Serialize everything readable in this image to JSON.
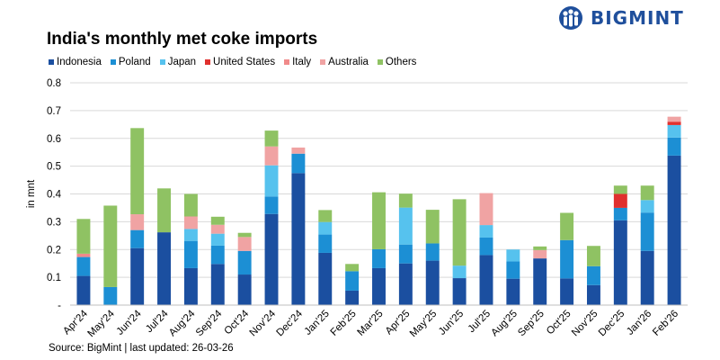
{
  "brand": {
    "name": "BIGMINT",
    "icon": "bigmint-people-logo-icon",
    "color": "#1f4f9c"
  },
  "chart_data": {
    "type": "bar",
    "stacked": true,
    "title": "India's monthly met coke imports",
    "ylabel": "in mnt",
    "xlabel": "",
    "ylim": [
      0,
      0.8
    ],
    "yticks": [
      "-",
      "0.1",
      "0.2",
      "0.3",
      "0.4",
      "0.5",
      "0.6",
      "0.7",
      "0.8"
    ],
    "grid": true,
    "legend_position": "top-left",
    "categories": [
      "Apr'24",
      "May'24",
      "Jun'24",
      "Jul'24",
      "Aug'24",
      "Sep'24",
      "Oct'24",
      "Nov'24",
      "Dec'24",
      "Jan'25",
      "Feb'25",
      "Mar'25",
      "Apr'25",
      "May'25",
      "Jun'25",
      "Jul'25",
      "Aug'25",
      "Sep'25",
      "Oct'25",
      "Nov'25",
      "Dec'25",
      "Jan'26",
      "Feb'26"
    ],
    "series": [
      {
        "name": "Indonesia",
        "color": "#1b4fa0",
        "values": [
          0.105,
          0,
          0.205,
          0.262,
          0.133,
          0.148,
          0.11,
          0.328,
          0.475,
          0.188,
          0.052,
          0.133,
          0.15,
          0.16,
          0.097,
          0.18,
          0.095,
          0.168,
          0.096,
          0.072,
          0.305,
          0.195,
          0.538
        ]
      },
      {
        "name": "Poland",
        "color": "#1c8fd4",
        "values": [
          0.068,
          0.065,
          0.065,
          0,
          0.098,
          0.066,
          0.085,
          0.063,
          0.07,
          0.066,
          0.07,
          0.068,
          0.068,
          0.062,
          0,
          0.063,
          0.062,
          0,
          0.138,
          0.068,
          0.045,
          0.138,
          0.065
        ]
      },
      {
        "name": "Japan",
        "color": "#56c2ee",
        "values": [
          0,
          0,
          0,
          0,
          0.043,
          0.043,
          0,
          0.112,
          0,
          0.045,
          0,
          0,
          0.133,
          0,
          0.045,
          0.045,
          0.043,
          0,
          0,
          0,
          0,
          0.045,
          0.045
        ]
      },
      {
        "name": "United States",
        "color": "#e0302e",
        "values": [
          0,
          0,
          0,
          0,
          0,
          0,
          0,
          0,
          0,
          0,
          0,
          0,
          0,
          0,
          0,
          0,
          0,
          0,
          0,
          0,
          0.05,
          0,
          0.012
        ]
      },
      {
        "name": "Italy",
        "color": "#f08a8a",
        "values": [
          0.012,
          0,
          0,
          0,
          0,
          0,
          0,
          0,
          0,
          0,
          0,
          0,
          0,
          0,
          0,
          0,
          0,
          0,
          0,
          0,
          0,
          0,
          0
        ]
      },
      {
        "name": "Australia",
        "color": "#f0a3a3",
        "values": [
          0,
          0,
          0.057,
          0,
          0.045,
          0.032,
          0.05,
          0.068,
          0.022,
          0,
          0,
          0,
          0,
          0,
          0,
          0.115,
          0,
          0.03,
          0,
          0,
          0,
          0,
          0.018
        ]
      },
      {
        "name": "Others",
        "color": "#8fc263",
        "values": [
          0.125,
          0.293,
          0.31,
          0.158,
          0.081,
          0.029,
          0.015,
          0.057,
          0,
          0.043,
          0.026,
          0.205,
          0.05,
          0.121,
          0.239,
          0,
          0,
          0.013,
          0.098,
          0.073,
          0.03,
          0.052,
          0
        ]
      }
    ]
  },
  "source": "Source: BigMint | last updated: 26-03-26"
}
